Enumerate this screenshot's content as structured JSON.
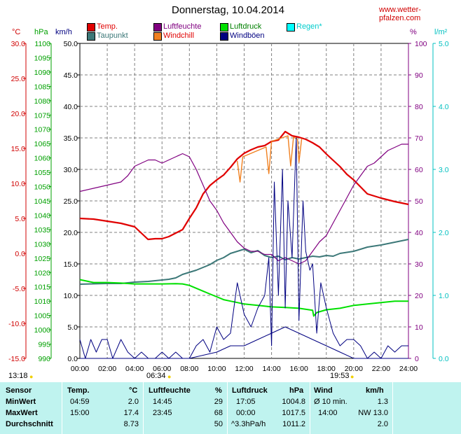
{
  "header": {
    "title": "Donnerstag, 10.04.2014",
    "site": "www.wetter-pfalzen.com"
  },
  "axis_units": {
    "temp": "°C",
    "pressure": "hPa",
    "wind": "km/h",
    "humidity": "%",
    "rain": "l/m²"
  },
  "legend": [
    {
      "label": "Temp.",
      "color": "#e00000",
      "label_color": "#e00000"
    },
    {
      "label": "Taupunkt",
      "color": "#3c7878",
      "label_color": "#3c7878"
    },
    {
      "label": "Luftfeuchte",
      "color": "#800080",
      "label_color": "#800080"
    },
    {
      "label": "Windchill",
      "color": "#f08020",
      "label_color": "#e00000"
    },
    {
      "label": "Luftdruck",
      "color": "#00e000",
      "label_color": "#008000"
    },
    {
      "label": "Windböen",
      "color": "#000080",
      "label_color": "#000080"
    },
    {
      "label": "Regen*",
      "color": "#00ffff",
      "label_color": "#00cccc"
    }
  ],
  "sun": {
    "moonrise": "13:18",
    "sunrise": "06:34",
    "sunset": "19:53"
  },
  "chart_data": {
    "type": "line",
    "x_ticks": [
      "00:00",
      "02:00",
      "04:00",
      "06:00",
      "08:00",
      "10:00",
      "12:00",
      "14:00",
      "16:00",
      "18:00",
      "20:00",
      "22:00",
      "24:00"
    ],
    "xlim": [
      0,
      24
    ],
    "axes": {
      "temp": {
        "range": [
          -15,
          30
        ],
        "ticks": [
          "30.0",
          "25.0",
          "20.0",
          "15.0",
          "10.0",
          "5.0",
          "0.0",
          "-5.0",
          "-10.0",
          "-15.0"
        ]
      },
      "pressure": {
        "range": [
          990,
          1100
        ],
        "ticks": [
          "1100",
          "1095",
          "1090",
          "1085",
          "1080",
          "1075",
          "1070",
          "1065",
          "1060",
          "1055",
          "1050",
          "1045",
          "1040",
          "1035",
          "1030",
          "1025",
          "1020",
          "1015",
          "1010",
          "1005",
          "1000",
          "995",
          "990"
        ]
      },
      "wind": {
        "range": [
          0,
          50
        ],
        "ticks": [
          "50.0",
          "45.0",
          "40.0",
          "35.0",
          "30.0",
          "25.0",
          "20.0",
          "15.0",
          "10.0",
          "5.0",
          "0.0"
        ]
      },
      "humidity": {
        "range": [
          0,
          100
        ],
        "ticks": [
          "100",
          "90",
          "80",
          "70",
          "60",
          "50",
          "40",
          "30",
          "20",
          "10",
          "0"
        ]
      },
      "rain": {
        "range": [
          0,
          5
        ],
        "ticks": [
          "5.0",
          "4.0",
          "3.0",
          "2.0",
          "1.0",
          "0.0"
        ]
      }
    },
    "series": [
      {
        "name": "Temp.",
        "axis": "temp",
        "color": "#e00000",
        "width": 2.2,
        "points": [
          [
            0,
            5
          ],
          [
            1,
            4.9
          ],
          [
            2,
            4.6
          ],
          [
            3,
            4.3
          ],
          [
            4,
            3.8
          ],
          [
            4.98,
            2.0
          ],
          [
            5.5,
            2.1
          ],
          [
            6,
            2.1
          ],
          [
            6.5,
            2.4
          ],
          [
            7,
            2.9
          ],
          [
            7.5,
            3.4
          ],
          [
            8,
            5
          ],
          [
            8.5,
            6.5
          ],
          [
            9,
            8.5
          ],
          [
            9.5,
            9.7
          ],
          [
            10,
            10.5
          ],
          [
            10.5,
            11.2
          ],
          [
            11,
            12.3
          ],
          [
            11.5,
            13.5
          ],
          [
            12,
            14.3
          ],
          [
            12.5,
            14.8
          ],
          [
            13,
            15.2
          ],
          [
            13.5,
            15.4
          ],
          [
            14,
            16
          ],
          [
            14.5,
            16.2
          ],
          [
            15,
            17.4
          ],
          [
            15.5,
            16.8
          ],
          [
            16,
            16.6
          ],
          [
            16.5,
            16.3
          ],
          [
            17,
            15.8
          ],
          [
            17.5,
            15.2
          ],
          [
            18,
            14.2
          ],
          [
            18.5,
            13.3
          ],
          [
            19,
            12.4
          ],
          [
            19.5,
            11.3
          ],
          [
            20,
            10.5
          ],
          [
            20.5,
            9.5
          ],
          [
            21,
            8.5
          ],
          [
            22,
            7.9
          ],
          [
            23,
            7.4
          ],
          [
            24,
            7.0
          ]
        ]
      },
      {
        "name": "Windchill",
        "axis": "temp",
        "color": "#f08020",
        "width": 1.4,
        "points": [
          [
            11.5,
            13.2
          ],
          [
            11.7,
            10.2
          ],
          [
            11.9,
            13.8
          ],
          [
            13.6,
            15.2
          ],
          [
            13.8,
            11.4
          ],
          [
            14,
            16
          ],
          [
            15.2,
            16.8
          ],
          [
            15.4,
            12.5
          ],
          [
            15.6,
            16.6
          ],
          [
            15.9,
            16.3
          ],
          [
            16,
            13
          ],
          [
            16.2,
            16.4
          ]
        ]
      },
      {
        "name": "Taupunkt",
        "axis": "temp",
        "color": "#3c7878",
        "width": 2.0,
        "points": [
          [
            0,
            -4.4
          ],
          [
            2,
            -4.3
          ],
          [
            3,
            -4.3
          ],
          [
            4,
            -4.1
          ],
          [
            5,
            -4.0
          ],
          [
            6,
            -3.8
          ],
          [
            6.5,
            -3.7
          ],
          [
            7,
            -3.5
          ],
          [
            7.5,
            -3.0
          ],
          [
            8,
            -2.7
          ],
          [
            8.5,
            -2.4
          ],
          [
            9,
            -2.0
          ],
          [
            9.5,
            -1.6
          ],
          [
            10,
            -1.0
          ],
          [
            10.5,
            -0.6
          ],
          [
            11,
            0
          ],
          [
            11.5,
            0.3
          ],
          [
            12,
            0.6
          ],
          [
            12.5,
            0.1
          ],
          [
            13,
            0.4
          ],
          [
            13.5,
            -0.3
          ],
          [
            14,
            -0.6
          ],
          [
            14.5,
            -0.4
          ],
          [
            15,
            -0.9
          ],
          [
            15.5,
            -0.6
          ],
          [
            16,
            -0.8
          ],
          [
            16.5,
            -0.6
          ],
          [
            17,
            -0.4
          ],
          [
            17.5,
            -0.5
          ],
          [
            18,
            -0.3
          ],
          [
            18.5,
            -0.4
          ],
          [
            19,
            0
          ],
          [
            20,
            0.3
          ],
          [
            21,
            0.9
          ],
          [
            22,
            1.2
          ],
          [
            23,
            1.6
          ],
          [
            24,
            2.0
          ]
        ]
      },
      {
        "name": "Luftfeuchte",
        "axis": "humidity",
        "color": "#800080",
        "width": 1.2,
        "points": [
          [
            0,
            53
          ],
          [
            1,
            54
          ],
          [
            2,
            55
          ],
          [
            3,
            56
          ],
          [
            3.5,
            58
          ],
          [
            4,
            61
          ],
          [
            4.5,
            62
          ],
          [
            5,
            63
          ],
          [
            5.5,
            63
          ],
          [
            6,
            62
          ],
          [
            6.5,
            63
          ],
          [
            7,
            64
          ],
          [
            7.5,
            65
          ],
          [
            8,
            64
          ],
          [
            8.5,
            60
          ],
          [
            9,
            55
          ],
          [
            9.5,
            50
          ],
          [
            10,
            47
          ],
          [
            10.5,
            43
          ],
          [
            11,
            40
          ],
          [
            11.5,
            37
          ],
          [
            12,
            35
          ],
          [
            12.5,
            34
          ],
          [
            13,
            34
          ],
          [
            13.5,
            33
          ],
          [
            14,
            33
          ],
          [
            14.5,
            31
          ],
          [
            15,
            32
          ],
          [
            15.5,
            31
          ],
          [
            16,
            30
          ],
          [
            16.5,
            31
          ],
          [
            17,
            34
          ],
          [
            17.5,
            37
          ],
          [
            18,
            39
          ],
          [
            18.5,
            43
          ],
          [
            19,
            47
          ],
          [
            19.5,
            51
          ],
          [
            20,
            55
          ],
          [
            20.5,
            58
          ],
          [
            21,
            61
          ],
          [
            21.5,
            62
          ],
          [
            22,
            64
          ],
          [
            22.5,
            66
          ],
          [
            23,
            67
          ],
          [
            23.5,
            68
          ],
          [
            24,
            68
          ]
        ]
      },
      {
        "name": "Luftdruck",
        "axis": "pressure",
        "color": "#00e000",
        "width": 2.0,
        "points": [
          [
            0,
            1017.5
          ],
          [
            1,
            1016.5
          ],
          [
            2,
            1016.5
          ],
          [
            3,
            1016.3
          ],
          [
            4,
            1016.0
          ],
          [
            5,
            1016.0
          ],
          [
            6,
            1016.0
          ],
          [
            7,
            1016.1
          ],
          [
            7.5,
            1016.0
          ],
          [
            8,
            1015.5
          ],
          [
            8.5,
            1014.5
          ],
          [
            9,
            1013.5
          ],
          [
            9.5,
            1012.5
          ],
          [
            10,
            1011.5
          ],
          [
            10.5,
            1010.5
          ],
          [
            11,
            1010.0
          ],
          [
            11.5,
            1009.5
          ],
          [
            12,
            1009.0
          ],
          [
            13,
            1008.5
          ],
          [
            14,
            1008.0
          ],
          [
            15,
            1007.8
          ],
          [
            16,
            1007.5
          ],
          [
            17,
            1006.8
          ],
          [
            17.08,
            1004.8
          ],
          [
            17.3,
            1006.0
          ],
          [
            18,
            1007.0
          ],
          [
            19,
            1007.5
          ],
          [
            20,
            1008.5
          ],
          [
            21,
            1009.0
          ],
          [
            22,
            1009.5
          ],
          [
            23,
            1010.0
          ],
          [
            24,
            1010.0
          ]
        ]
      },
      {
        "name": "Windböen",
        "axis": "wind",
        "color": "#000080",
        "width": 1.0,
        "points": [
          [
            0,
            3
          ],
          [
            0.4,
            0
          ],
          [
            0.8,
            3
          ],
          [
            1.2,
            1
          ],
          [
            1.6,
            3
          ],
          [
            2,
            3
          ],
          [
            2.4,
            0
          ],
          [
            3,
            3
          ],
          [
            3.5,
            1
          ],
          [
            4,
            0
          ],
          [
            4.5,
            1
          ],
          [
            5,
            0
          ],
          [
            5.5,
            0
          ],
          [
            6,
            1
          ],
          [
            6.5,
            0
          ],
          [
            7,
            1
          ],
          [
            7.5,
            0
          ],
          [
            8,
            0
          ],
          [
            8.5,
            2
          ],
          [
            9,
            3
          ],
          [
            9.5,
            1
          ],
          [
            10,
            5
          ],
          [
            10.5,
            3
          ],
          [
            11,
            4
          ],
          [
            11.5,
            12
          ],
          [
            12,
            7
          ],
          [
            12.5,
            5
          ],
          [
            13,
            8
          ],
          [
            13.5,
            10
          ],
          [
            13.8,
            16
          ],
          [
            14,
            2
          ],
          [
            14.2,
            28
          ],
          [
            14.5,
            10
          ],
          [
            14.8,
            30
          ],
          [
            15,
            8
          ],
          [
            15.2,
            25
          ],
          [
            15.5,
            16
          ],
          [
            15.8,
            35
          ],
          [
            16,
            6
          ],
          [
            16.3,
            25
          ],
          [
            16.5,
            17
          ],
          [
            16.8,
            14
          ],
          [
            17.0,
            15
          ],
          [
            17.3,
            4
          ],
          [
            17.6,
            12
          ],
          [
            18,
            8
          ],
          [
            18.5,
            4
          ],
          [
            19,
            2
          ],
          [
            19.5,
            3
          ],
          [
            20,
            3
          ],
          [
            20.5,
            2
          ],
          [
            21,
            0
          ],
          [
            21.5,
            1
          ],
          [
            22,
            0
          ],
          [
            22.5,
            2
          ],
          [
            23,
            1
          ],
          [
            23.5,
            2
          ],
          [
            24,
            2
          ]
        ]
      },
      {
        "name": "Wind",
        "axis": "wind",
        "color": "#000080",
        "width": 1.0,
        "points": [
          [
            0,
            0
          ],
          [
            3,
            0
          ],
          [
            8,
            0
          ],
          [
            10,
            1
          ],
          [
            11,
            2
          ],
          [
            12,
            2
          ],
          [
            13,
            3
          ],
          [
            14,
            4
          ],
          [
            15,
            5
          ],
          [
            16,
            4
          ],
          [
            17,
            3
          ],
          [
            18,
            2
          ],
          [
            19,
            1
          ],
          [
            20,
            0
          ],
          [
            24,
            0
          ]
        ]
      }
    ]
  },
  "stats": {
    "headers": {
      "sensor": "Sensor",
      "temp": "Temp.",
      "temp_unit": "°C",
      "hum": "Luftfeuchte",
      "hum_unit": "%",
      "pres": "Luftdruck",
      "pres_unit": "hPa",
      "wind": "Wind",
      "wind_unit": "km/h"
    },
    "rows": [
      {
        "label": "MinWert",
        "temp_time": "04:59",
        "temp_val": "2.0",
        "hum_time": "14:45",
        "hum_val": "29",
        "pres_time": "17:05",
        "pres_val": "1004.8",
        "wind_time": "Ø 10 min.",
        "wind_val": "1.3"
      },
      {
        "label": "MaxWert",
        "temp_time": "15:00",
        "temp_val": "17.4",
        "hum_time": "23:45",
        "hum_val": "68",
        "pres_time": "00:00",
        "pres_val": "1017.5",
        "wind_time": "14:00",
        "wind_val": "NW 13.0"
      },
      {
        "label": "Durchschnitt",
        "temp_time": "",
        "temp_val": "8.73",
        "hum_time": "",
        "hum_val": "50",
        "pres_time": "^3.3hPa/h",
        "pres_val": "1011.2",
        "wind_time": "",
        "wind_val": "2.0"
      }
    ]
  }
}
